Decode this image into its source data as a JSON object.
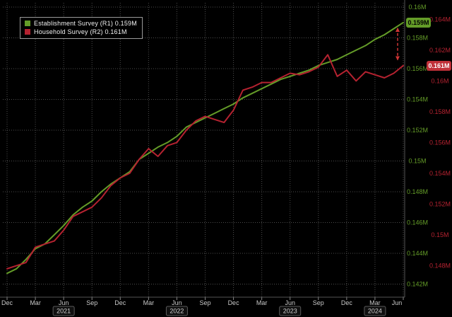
{
  "legend": {
    "items": [
      {
        "label": "Establishment Survey (R1) 0.159M"
      },
      {
        "label": "Household Survey (R2) 0.161M"
      }
    ]
  },
  "badges": {
    "establishment_last": "0.159M",
    "household_last": "0.161M"
  },
  "colors": {
    "background": "#000000",
    "grid": "#4d4d4d",
    "axis_line": "#555555",
    "establishment_green": "#649c28",
    "household_red": "#b52230",
    "badge_red": "#c03038",
    "x_axis_text": "#c8c8c8",
    "year_text": "#d0d0d0",
    "arrow_red": "#d03535"
  },
  "chart_data": {
    "type": "line",
    "title": "",
    "xlabel": "",
    "ylabel": "",
    "grid": true,
    "legend_position": "top-left",
    "x_monthly": [
      "2020-12",
      "2021-01",
      "2021-02",
      "2021-03",
      "2021-04",
      "2021-05",
      "2021-06",
      "2021-07",
      "2021-08",
      "2021-09",
      "2021-10",
      "2021-11",
      "2021-12",
      "2022-01",
      "2022-02",
      "2022-03",
      "2022-04",
      "2022-05",
      "2022-06",
      "2022-07",
      "2022-08",
      "2022-09",
      "2022-10",
      "2022-11",
      "2022-12",
      "2023-01",
      "2023-02",
      "2023-03",
      "2023-04",
      "2023-05",
      "2023-06",
      "2023-07",
      "2023-08",
      "2023-09",
      "2023-10",
      "2023-11",
      "2023-12",
      "2024-01",
      "2024-02",
      "2024-03",
      "2024-04",
      "2024-05",
      "2024-06"
    ],
    "series": [
      {
        "name": "Establishment Survey (R1)",
        "axis": "green",
        "last_value_label": "0.159M",
        "values": [
          0.1427,
          0.143,
          0.1436,
          0.1443,
          0.1446,
          0.1452,
          0.1458,
          0.1465,
          0.147,
          0.1474,
          0.148,
          0.1485,
          0.1489,
          0.1493,
          0.1501,
          0.1505,
          0.1509,
          0.1512,
          0.1516,
          0.1522,
          0.1525,
          0.1528,
          0.1531,
          0.1534,
          0.1537,
          0.1541,
          0.1544,
          0.1547,
          0.155,
          0.1553,
          0.1555,
          0.1557,
          0.1559,
          0.1562,
          0.1564,
          0.1566,
          0.1569,
          0.1572,
          0.1575,
          0.1579,
          0.1582,
          0.1586,
          0.159
        ]
      },
      {
        "name": "Household Survey (R2)",
        "axis": "red",
        "last_value_label": "0.161M",
        "values": [
          0.1478,
          0.148,
          0.1482,
          0.1492,
          0.1494,
          0.1496,
          0.1503,
          0.1512,
          0.1515,
          0.1518,
          0.1524,
          0.1532,
          0.1537,
          0.154,
          0.1549,
          0.1556,
          0.1551,
          0.1558,
          0.156,
          0.1568,
          0.1574,
          0.1577,
          0.1575,
          0.1573,
          0.1581,
          0.1594,
          0.1596,
          0.1599,
          0.1599,
          0.1602,
          0.1605,
          0.1604,
          0.1606,
          0.1609,
          0.1617,
          0.1603,
          0.1607,
          0.16,
          0.1606,
          0.1604,
          0.1602,
          0.1605,
          0.161
        ]
      }
    ],
    "x_tick_labels": [
      "Dec",
      "Mar",
      "Jun",
      "Sep",
      "Dec",
      "Mar",
      "Jun",
      "Sep",
      "Dec",
      "Mar",
      "Jun",
      "Sep",
      "Dec",
      "Mar",
      "Jun"
    ],
    "x_tick_month_indices": [
      0,
      3,
      6,
      9,
      12,
      15,
      18,
      21,
      24,
      27,
      30,
      33,
      36,
      39,
      42
    ],
    "year_labels": [
      {
        "label": "2021",
        "month_index": 6
      },
      {
        "label": "2022",
        "month_index": 18
      },
      {
        "label": "2023",
        "month_index": 30
      },
      {
        "label": "2024",
        "month_index": 39
      }
    ],
    "green_axis": {
      "side": "right-inner",
      "ticks": [
        {
          "label": "0.16M",
          "value": 0.16
        },
        {
          "label": "0.158M",
          "value": 0.158
        },
        {
          "label": "0.156M",
          "value": 0.156
        },
        {
          "label": "0.154M",
          "value": 0.154
        },
        {
          "label": "0.152M",
          "value": 0.152
        },
        {
          "label": "0.15M",
          "value": 0.15
        },
        {
          "label": "0.148M",
          "value": 0.148
        },
        {
          "label": "0.146M",
          "value": 0.146
        },
        {
          "label": "0.144M",
          "value": 0.144
        },
        {
          "label": "0.142M",
          "value": 0.142
        }
      ]
    },
    "red_axis": {
      "side": "right-outer",
      "ticks": [
        {
          "label": "0.164M",
          "value": 0.164
        },
        {
          "label": "0.162M",
          "value": 0.162
        },
        {
          "label": "0.16M",
          "value": 0.16
        },
        {
          "label": "0.158M",
          "value": 0.158
        },
        {
          "label": "0.156M",
          "value": 0.156
        },
        {
          "label": "0.154M",
          "value": 0.154
        },
        {
          "label": "0.152M",
          "value": 0.152
        },
        {
          "label": "0.15M",
          "value": 0.15
        },
        {
          "label": "0.148M",
          "value": 0.148
        }
      ]
    },
    "annotation_arrow": {
      "style": "dashed",
      "from_green_value": 0.159,
      "to_red_value": 0.161
    }
  }
}
